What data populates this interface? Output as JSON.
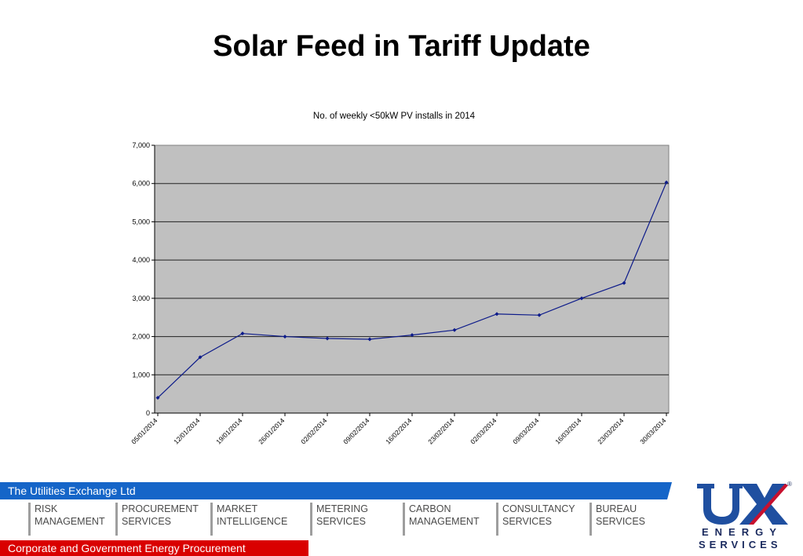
{
  "slide": {
    "title": "Solar Feed in Tariff Update"
  },
  "chart_data": {
    "type": "line",
    "title": "No. of weekly <50kW PV installs in 2014",
    "xlabel": "",
    "ylabel": "",
    "x": [
      "05/01/2014",
      "12/01/2014",
      "19/01/2014",
      "26/01/2014",
      "02/02/2014",
      "09/02/2014",
      "16/02/2014",
      "23/02/2014",
      "02/03/2014",
      "09/03/2014",
      "16/03/2014",
      "23/03/2014",
      "30/03/2014"
    ],
    "series": [
      {
        "values": [
          400,
          1460,
          2080,
          2000,
          1950,
          1930,
          2040,
          2170,
          2590,
          2560,
          3000,
          3400,
          6030
        ]
      }
    ],
    "ylim": [
      0,
      7000
    ],
    "yticks": [
      "0",
      "1,000",
      "2,000",
      "3,000",
      "4,000",
      "5,000",
      "6,000",
      "7,000"
    ],
    "grid": true,
    "legend": "none",
    "colors": {
      "plot_bg": "#c0c0c0",
      "line": "#0d1b8a",
      "grid": "#222222"
    }
  },
  "footer": {
    "company": "The Utilities Exchange Ltd",
    "tagline": "Corporate and Government Energy Procurement",
    "services": [
      {
        "line1": "RISK",
        "line2": "MANAGEMENT"
      },
      {
        "line1": "PROCUREMENT",
        "line2": "SERVICES"
      },
      {
        "line1": "MARKET",
        "line2": "INTELLIGENCE"
      },
      {
        "line1": "METERING",
        "line2": "SERVICES"
      },
      {
        "line1": "CARBON",
        "line2": "MANAGEMENT"
      },
      {
        "line1": "CONSULTANCY",
        "line2": "SERVICES"
      },
      {
        "line1": "BUREAU",
        "line2": "SERVICES"
      }
    ],
    "logo": {
      "mark": "UX",
      "line1": "ENERGY",
      "line2": "SERVICES",
      "reg": "®"
    }
  }
}
